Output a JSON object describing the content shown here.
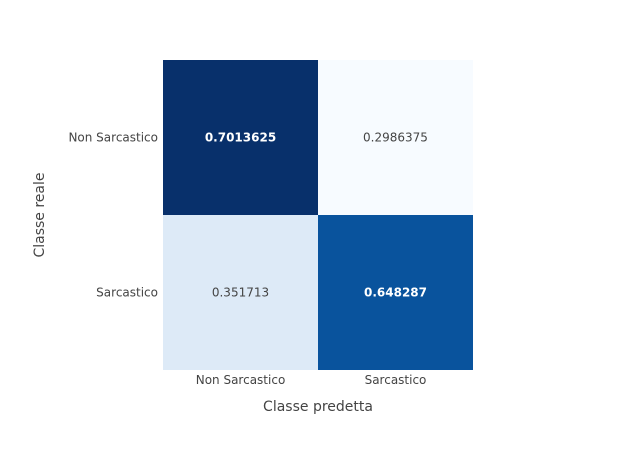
{
  "chart_data": {
    "type": "heatmap",
    "title": "",
    "xlabel": "Classe predetta",
    "ylabel": "Classe reale",
    "x_categories": [
      "Non Sarcastico",
      "Sarcastico"
    ],
    "y_categories": [
      "Non Sarcastico",
      "Sarcastico"
    ],
    "values": [
      [
        0.7013625,
        0.2986375
      ],
      [
        0.351713,
        0.648287
      ]
    ],
    "value_labels": [
      [
        "0.7013625",
        "0.2986375"
      ],
      [
        "0.351713",
        "0.648287"
      ]
    ],
    "colorscale": "Blues",
    "color_range": [
      0.2986375,
      0.7013625
    ],
    "colorbar": false,
    "grid": false
  }
}
